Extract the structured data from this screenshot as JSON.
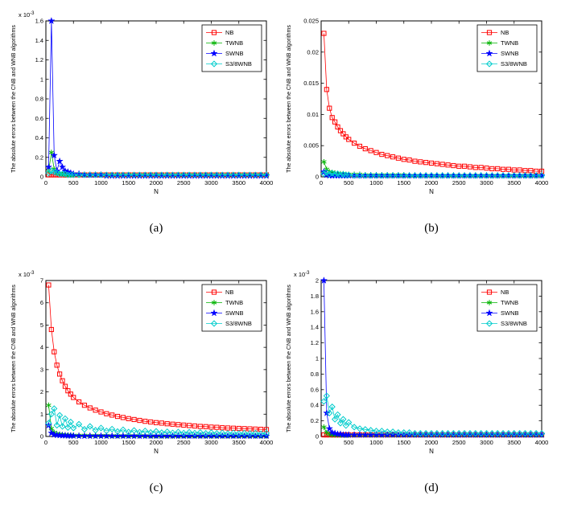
{
  "figure": {
    "ylabel": "The absolute errors between the CNB and WNB algorithms",
    "xlabel": "N",
    "background": "#ffffff",
    "series_colors": {
      "NB": "#ff0000",
      "TWNB": "#00b300",
      "SWNB": "#0000ff",
      "S3/8WNB": "#00cccc"
    },
    "series_markers": {
      "NB": "square",
      "TWNB": "asterisk",
      "SWNB": "star",
      "S3/8WNB": "diamond"
    }
  },
  "x": [
    50,
    100,
    150,
    200,
    250,
    300,
    350,
    400,
    450,
    500,
    600,
    700,
    800,
    900,
    1000,
    1100,
    1200,
    1300,
    1400,
    1500,
    1600,
    1700,
    1800,
    1900,
    2000,
    2100,
    2200,
    2300,
    2400,
    2500,
    2600,
    2700,
    2800,
    2900,
    3000,
    3100,
    3200,
    3300,
    3400,
    3500,
    3600,
    3700,
    3800,
    3900,
    4000
  ],
  "chart_data": [
    {
      "type": "line",
      "caption": "(a)",
      "xlabel": "N",
      "ylabel": "The absolute errors between the CNB and WNB algorithms",
      "y_exponent": {
        "base": "x 10",
        "power": "-3"
      },
      "xlim": [
        0,
        4000
      ],
      "xticks": [
        0,
        500,
        1000,
        1500,
        2000,
        2500,
        3000,
        3500,
        4000
      ],
      "ylim": [
        0,
        1.6
      ],
      "yticks": [
        0,
        0.2,
        0.4,
        0.6,
        0.8,
        1,
        1.2,
        1.4,
        1.6
      ],
      "ytick_labels": [
        "0",
        "0.2",
        "0.4",
        "0.6",
        "0.8",
        "1",
        "1.2",
        "1.4",
        "1.6"
      ],
      "grid": false,
      "legend_position": "top-right",
      "series": [
        {
          "name": "NB",
          "color": "#ff0000",
          "marker": "square",
          "values": [
            0.02,
            0.02,
            0.02,
            0.02,
            0.02,
            0.02,
            0.02,
            0.02,
            0.02,
            0.02,
            0.02,
            0.02,
            0.02,
            0.02,
            0.02,
            0.02,
            0.02,
            0.02,
            0.02,
            0.02,
            0.02,
            0.02,
            0.02,
            0.02,
            0.02,
            0.02,
            0.02,
            0.02,
            0.02,
            0.02,
            0.02,
            0.02,
            0.02,
            0.02,
            0.02,
            0.02,
            0.02,
            0.02,
            0.02,
            0.02,
            0.02,
            0.02,
            0.02,
            0.02,
            0.02
          ]
        },
        {
          "name": "TWNB",
          "color": "#00b300",
          "marker": "asterisk",
          "values": [
            0.06,
            0.25,
            0.08,
            0.04,
            0.03,
            0.03,
            0.02,
            0.02,
            0.02,
            0.02,
            0.02,
            0.02,
            0.02,
            0.02,
            0.02,
            0.02,
            0.02,
            0.02,
            0.02,
            0.02,
            0.02,
            0.02,
            0.02,
            0.02,
            0.02,
            0.02,
            0.02,
            0.02,
            0.02,
            0.02,
            0.02,
            0.02,
            0.02,
            0.02,
            0.02,
            0.02,
            0.02,
            0.02,
            0.02,
            0.02,
            0.02,
            0.02,
            0.02,
            0.02,
            0.02
          ]
        },
        {
          "name": "SWNB",
          "color": "#0000ff",
          "marker": "star",
          "values": [
            0.1,
            1.6,
            0.22,
            0.06,
            0.16,
            0.1,
            0.06,
            0.05,
            0.04,
            0.03,
            0.03,
            0.02,
            0.02,
            0.02,
            0.02,
            0.01,
            0.01,
            0.01,
            0.01,
            0.01,
            0.01,
            0.01,
            0.01,
            0.01,
            0.01,
            0.01,
            0.01,
            0.01,
            0.01,
            0.01,
            0.01,
            0.01,
            0.01,
            0.01,
            0.01,
            0.01,
            0.01,
            0.01,
            0.01,
            0.01,
            0.01,
            0.01,
            0.01,
            0.01,
            0.01
          ]
        },
        {
          "name": "S3/8WNB",
          "color": "#00cccc",
          "marker": "diamond",
          "values": [
            0.04,
            0.06,
            0.05,
            0.04,
            0.03,
            0.03,
            0.03,
            0.02,
            0.02,
            0.02,
            0.02,
            0.02,
            0.02,
            0.02,
            0.02,
            0.02,
            0.02,
            0.02,
            0.02,
            0.02,
            0.02,
            0.02,
            0.02,
            0.02,
            0.02,
            0.02,
            0.02,
            0.02,
            0.02,
            0.02,
            0.02,
            0.02,
            0.02,
            0.02,
            0.02,
            0.02,
            0.02,
            0.02,
            0.02,
            0.02,
            0.02,
            0.02,
            0.02,
            0.02,
            0.02
          ]
        }
      ]
    },
    {
      "type": "line",
      "caption": "(b)",
      "xlabel": "N",
      "ylabel": "The absolute errors between the CNB and WNB algorithms",
      "y_exponent": null,
      "xlim": [
        0,
        4000
      ],
      "xticks": [
        0,
        500,
        1000,
        1500,
        2000,
        2500,
        3000,
        3500,
        4000
      ],
      "ylim": [
        0,
        0.025
      ],
      "yticks": [
        0,
        0.005,
        0.01,
        0.015,
        0.02,
        0.025
      ],
      "ytick_labels": [
        "0",
        "0.005",
        "0.01",
        "0.015",
        "0.02",
        "0.025"
      ],
      "grid": false,
      "legend_position": "top-right",
      "series": [
        {
          "name": "NB",
          "color": "#ff0000",
          "marker": "square",
          "values": [
            0.023,
            0.014,
            0.011,
            0.0095,
            0.0088,
            0.008,
            0.0074,
            0.0069,
            0.0064,
            0.006,
            0.0054,
            0.0049,
            0.0045,
            0.0042,
            0.0039,
            0.0036,
            0.0034,
            0.0032,
            0.003,
            0.0028,
            0.0027,
            0.0025,
            0.0024,
            0.0023,
            0.0022,
            0.0021,
            0.002,
            0.0019,
            0.0018,
            0.0017,
            0.0017,
            0.0016,
            0.0015,
            0.0015,
            0.0014,
            0.0013,
            0.0013,
            0.0012,
            0.0012,
            0.0011,
            0.0011,
            0.001,
            0.001,
            0.0009,
            0.0009
          ]
        },
        {
          "name": "TWNB",
          "color": "#00b300",
          "marker": "asterisk",
          "values": [
            0.0024,
            0.0012,
            0.0008,
            0.0007,
            0.0006,
            0.0005,
            0.0005,
            0.0005,
            0.0004,
            0.0004,
            0.0004,
            0.0004,
            0.0003,
            0.0003,
            0.0003,
            0.0003,
            0.0003,
            0.0003,
            0.0003,
            0.0003,
            0.0002,
            0.0002,
            0.0002,
            0.0002,
            0.0002,
            0.0002,
            0.0002,
            0.0002,
            0.0002,
            0.0002,
            0.0002,
            0.0002,
            0.0002,
            0.0002,
            0.0002,
            0.0002,
            0.0002,
            0.0002,
            0.0002,
            0.0002,
            0.0002,
            0.0002,
            0.0002,
            0.0002,
            0.0002
          ]
        },
        {
          "name": "SWNB",
          "color": "#0000ff",
          "marker": "star",
          "values": [
            0.0008,
            0.0003,
            0.0002,
            0.0002,
            0.0002,
            0.0002,
            0.0002,
            0.0002,
            0.0002,
            0.0002,
            0.0002,
            0.0002,
            0.0002,
            0.0002,
            0.0002,
            0.0002,
            0.0002,
            0.0002,
            0.0002,
            0.0002,
            0.0002,
            0.0002,
            0.0002,
            0.0002,
            0.0002,
            0.0002,
            0.0002,
            0.0002,
            0.0002,
            0.0002,
            0.0002,
            0.0002,
            0.0002,
            0.0002,
            0.0002,
            0.0002,
            0.0002,
            0.0002,
            0.0002,
            0.0002,
            0.0002,
            0.0002,
            0.0002,
            0.0002,
            0.0002
          ]
        },
        {
          "name": "S3/8WNB",
          "color": "#00cccc",
          "marker": "diamond",
          "values": [
            0.0005,
            0.0007,
            0.0004,
            0.0006,
            0.0004,
            0.0005,
            0.0003,
            0.0004,
            0.0003,
            0.0003,
            0.0002,
            0.0002,
            0.0002,
            0.0002,
            0.0002,
            0.0002,
            0.0002,
            0.0002,
            0.0002,
            0.0002,
            0.0002,
            0.0002,
            0.0002,
            0.0002,
            0.0002,
            0.0002,
            0.0002,
            0.0002,
            0.0002,
            0.0002,
            0.0002,
            0.0002,
            0.0002,
            0.0002,
            0.0002,
            0.0002,
            0.0002,
            0.0002,
            0.0002,
            0.0002,
            0.0002,
            0.0002,
            0.0002,
            0.0002,
            0.0002
          ]
        }
      ]
    },
    {
      "type": "line",
      "caption": "(c)",
      "xlabel": "N",
      "ylabel": "The absolute errors between the CNB and WNB algorithms",
      "y_exponent": {
        "base": "x 10",
        "power": "-3"
      },
      "xlim": [
        0,
        4000
      ],
      "xticks": [
        0,
        500,
        1000,
        1500,
        2000,
        2500,
        3000,
        3500,
        4000
      ],
      "ylim": [
        0,
        7
      ],
      "yticks": [
        0,
        1,
        2,
        3,
        4,
        5,
        6,
        7
      ],
      "ytick_labels": [
        "0",
        "1",
        "2",
        "3",
        "4",
        "5",
        "6",
        "7"
      ],
      "grid": false,
      "legend_position": "top-right",
      "series": [
        {
          "name": "NB",
          "color": "#ff0000",
          "marker": "square",
          "values": [
            6.8,
            4.8,
            3.8,
            3.2,
            2.8,
            2.5,
            2.25,
            2.05,
            1.9,
            1.75,
            1.55,
            1.4,
            1.28,
            1.18,
            1.1,
            1.02,
            0.96,
            0.9,
            0.85,
            0.8,
            0.76,
            0.72,
            0.68,
            0.65,
            0.62,
            0.6,
            0.57,
            0.55,
            0.53,
            0.51,
            0.49,
            0.47,
            0.45,
            0.44,
            0.42,
            0.41,
            0.39,
            0.38,
            0.37,
            0.36,
            0.35,
            0.34,
            0.33,
            0.32,
            0.31
          ]
        },
        {
          "name": "TWNB",
          "color": "#00b300",
          "marker": "asterisk",
          "values": [
            1.4,
            0.35,
            0.18,
            0.12,
            0.1,
            0.08,
            0.07,
            0.06,
            0.06,
            0.05,
            0.05,
            0.05,
            0.04,
            0.04,
            0.04,
            0.04,
            0.03,
            0.03,
            0.03,
            0.03,
            0.03,
            0.03,
            0.03,
            0.02,
            0.02,
            0.02,
            0.02,
            0.02,
            0.02,
            0.02,
            0.02,
            0.02,
            0.02,
            0.02,
            0.02,
            0.02,
            0.02,
            0.02,
            0.02,
            0.02,
            0.02,
            0.02,
            0.02,
            0.02,
            0.02
          ]
        },
        {
          "name": "SWNB",
          "color": "#0000ff",
          "marker": "star",
          "values": [
            0.5,
            0.15,
            0.08,
            0.06,
            0.05,
            0.04,
            0.04,
            0.03,
            0.03,
            0.03,
            0.02,
            0.02,
            0.02,
            0.02,
            0.02,
            0.02,
            0.02,
            0.02,
            0.02,
            0.02,
            0.02,
            0.02,
            0.02,
            0.02,
            0.02,
            0.02,
            0.02,
            0.02,
            0.02,
            0.02,
            0.02,
            0.02,
            0.02,
            0.02,
            0.02,
            0.02,
            0.02,
            0.02,
            0.02,
            0.02,
            0.02,
            0.02,
            0.02,
            0.02,
            0.02
          ]
        },
        {
          "name": "S3/8WNB",
          "color": "#00cccc",
          "marker": "diamond",
          "values": [
            0.6,
            1.0,
            1.25,
            0.5,
            0.95,
            0.45,
            0.8,
            0.4,
            0.65,
            0.38,
            0.55,
            0.32,
            0.45,
            0.28,
            0.38,
            0.25,
            0.33,
            0.22,
            0.3,
            0.2,
            0.27,
            0.19,
            0.25,
            0.18,
            0.23,
            0.17,
            0.21,
            0.16,
            0.2,
            0.15,
            0.19,
            0.15,
            0.18,
            0.14,
            0.17,
            0.14,
            0.16,
            0.13,
            0.16,
            0.13,
            0.15,
            0.13,
            0.15,
            0.12,
            0.15
          ]
        }
      ]
    },
    {
      "type": "line",
      "caption": "(d)",
      "xlabel": "N",
      "ylabel": "The absolute errors between the CNB and WNB algorithms",
      "y_exponent": {
        "base": "x 10",
        "power": "-3"
      },
      "xlim": [
        0,
        4000
      ],
      "xticks": [
        0,
        500,
        1000,
        1500,
        2000,
        2500,
        3000,
        3500,
        4000
      ],
      "ylim": [
        0,
        2
      ],
      "yticks": [
        0,
        0.2,
        0.4,
        0.6,
        0.8,
        1,
        1.2,
        1.4,
        1.6,
        1.8,
        2
      ],
      "ytick_labels": [
        "0",
        "0.2",
        "0.4",
        "0.6",
        "0.8",
        "1",
        "1.2",
        "1.4",
        "1.6",
        "1.8",
        "2"
      ],
      "grid": false,
      "legend_position": "top-right",
      "series": [
        {
          "name": "NB",
          "color": "#ff0000",
          "marker": "square",
          "values": [
            0.02,
            0.02,
            0.02,
            0.02,
            0.02,
            0.02,
            0.02,
            0.02,
            0.02,
            0.02,
            0.02,
            0.02,
            0.02,
            0.02,
            0.02,
            0.02,
            0.02,
            0.02,
            0.02,
            0.02,
            0.02,
            0.02,
            0.02,
            0.02,
            0.02,
            0.02,
            0.02,
            0.02,
            0.02,
            0.02,
            0.02,
            0.02,
            0.02,
            0.02,
            0.02,
            0.02,
            0.02,
            0.02,
            0.02,
            0.02,
            0.02,
            0.02,
            0.02,
            0.02,
            0.02
          ]
        },
        {
          "name": "TWNB",
          "color": "#00b300",
          "marker": "asterisk",
          "values": [
            0.12,
            0.05,
            0.03,
            0.02,
            0.02,
            0.02,
            0.02,
            0.02,
            0.02,
            0.02,
            0.02,
            0.02,
            0.02,
            0.02,
            0.02,
            0.02,
            0.02,
            0.02,
            0.02,
            0.02,
            0.02,
            0.02,
            0.02,
            0.02,
            0.02,
            0.02,
            0.02,
            0.02,
            0.02,
            0.02,
            0.02,
            0.02,
            0.02,
            0.02,
            0.02,
            0.02,
            0.02,
            0.02,
            0.02,
            0.02,
            0.02,
            0.02,
            0.02,
            0.02,
            0.02
          ]
        },
        {
          "name": "SWNB",
          "color": "#0000ff",
          "marker": "star",
          "values": [
            2.0,
            0.3,
            0.1,
            0.05,
            0.04,
            0.03,
            0.03,
            0.02,
            0.02,
            0.02,
            0.02,
            0.02,
            0.02,
            0.02,
            0.02,
            0.02,
            0.02,
            0.02,
            0.02,
            0.02,
            0.02,
            0.02,
            0.02,
            0.02,
            0.02,
            0.02,
            0.02,
            0.02,
            0.02,
            0.02,
            0.02,
            0.02,
            0.02,
            0.02,
            0.02,
            0.02,
            0.02,
            0.02,
            0.02,
            0.02,
            0.02,
            0.02,
            0.02,
            0.02,
            0.02
          ]
        },
        {
          "name": "S3/8WNB",
          "color": "#00cccc",
          "marker": "diamond",
          "values": [
            0.45,
            0.52,
            0.3,
            0.38,
            0.22,
            0.28,
            0.17,
            0.22,
            0.14,
            0.18,
            0.12,
            0.1,
            0.09,
            0.08,
            0.07,
            0.07,
            0.06,
            0.06,
            0.05,
            0.05,
            0.05,
            0.04,
            0.04,
            0.04,
            0.04,
            0.04,
            0.04,
            0.04,
            0.04,
            0.04,
            0.04,
            0.04,
            0.04,
            0.04,
            0.04,
            0.04,
            0.04,
            0.04,
            0.04,
            0.04,
            0.04,
            0.04,
            0.04,
            0.04,
            0.04
          ]
        }
      ]
    }
  ]
}
